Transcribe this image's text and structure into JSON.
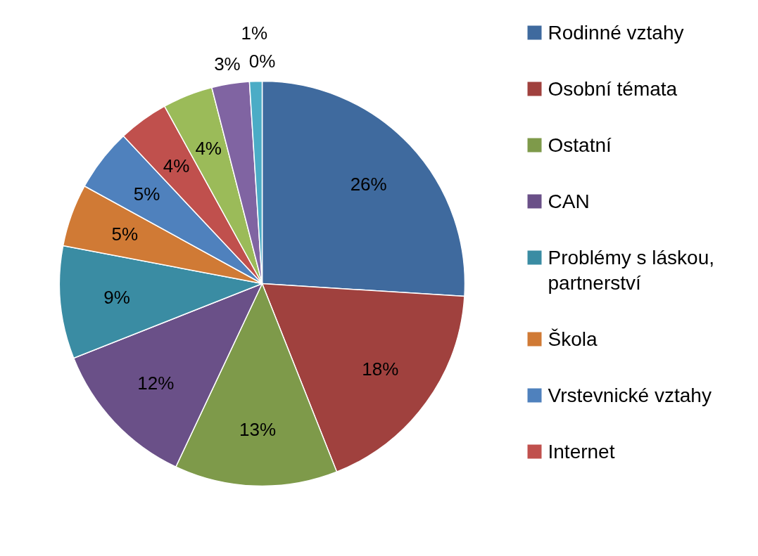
{
  "chart_data": {
    "type": "pie",
    "categories": [
      "Rodinné vztahy",
      "Osobní témata",
      "Ostatní",
      "CAN",
      "Problémy s láskou, partnerství",
      "Škola",
      "Vrstevnické vztahy",
      "Internet",
      null,
      null,
      null,
      null
    ],
    "values": [
      26,
      18,
      13,
      12,
      9,
      5,
      5,
      4,
      4,
      3,
      1,
      0
    ],
    "colors": [
      "#3f6a9e",
      "#a0413e",
      "#7e9a4a",
      "#6a5088",
      "#3a8ca3",
      "#d07a35",
      "#4f81bd",
      "#c0504d",
      "#9bbb59",
      "#8064a2",
      "#4bacc6",
      "#f79646"
    ],
    "value_labels": [
      "26%",
      "18%",
      "13%",
      "12%",
      "9%",
      "5%",
      "5%",
      "4%",
      "4%",
      "3%",
      "1%",
      "0%"
    ],
    "legend": "right"
  }
}
